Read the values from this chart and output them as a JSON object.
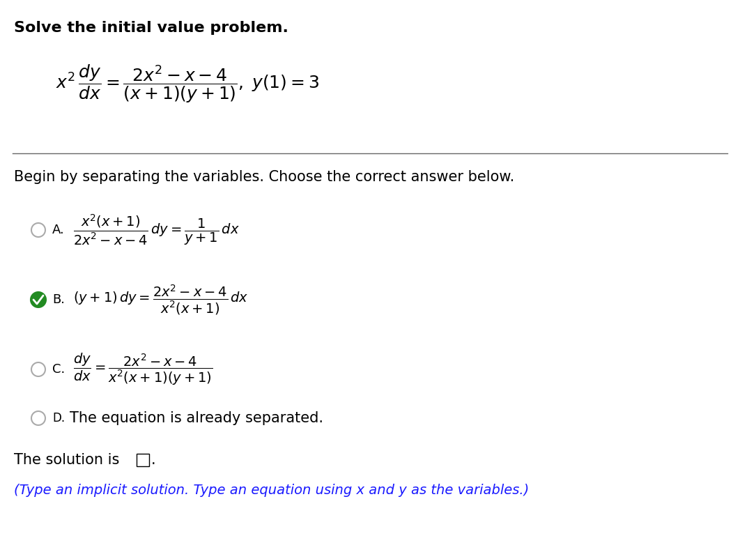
{
  "bg_color": "#ffffff",
  "text_color": "#000000",
  "title": "Solve the initial value problem.",
  "begin_text": "Begin by separating the variables. Choose the correct answer below.",
  "option_D_text": "The equation is already separated.",
  "solution_text": "The solution is",
  "hint_text": "(Type an implicit solution. Type an equation using x and y as the variables.)",
  "hint_color": "#1a1aff",
  "check_color": "#228B22",
  "circle_color": "#aaaaaa",
  "title_fontsize": 16,
  "main_eq_fontsize": 16,
  "body_fontsize": 15,
  "label_fontsize": 13,
  "hint_fontsize": 14
}
